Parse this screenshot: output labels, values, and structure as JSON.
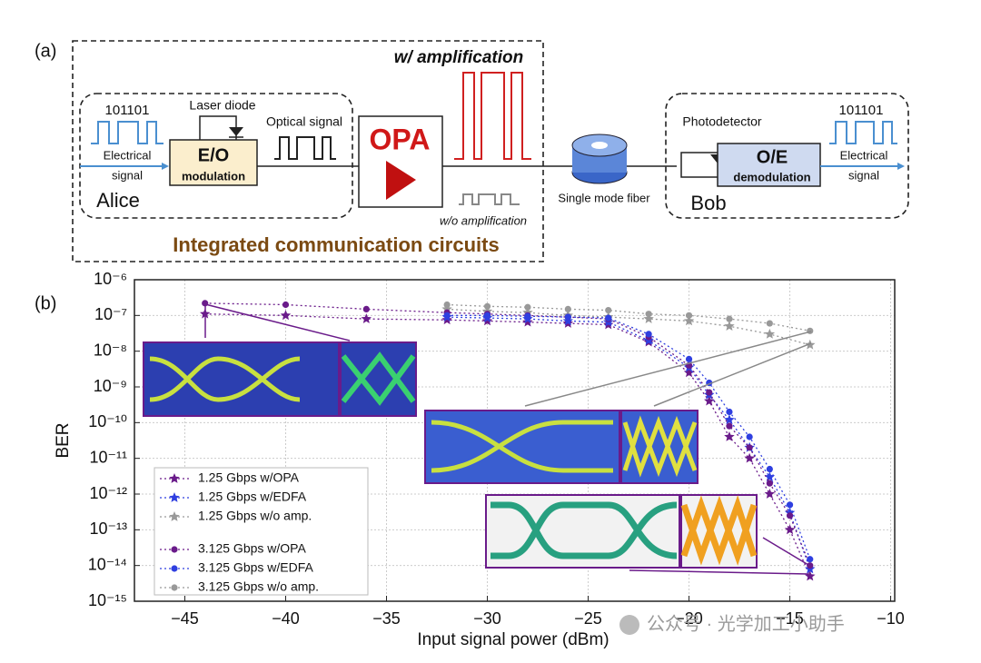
{
  "diagram": {
    "panel_a": "(a)",
    "amp_label": "w/ amplification",
    "alice_bits": "101101",
    "laser": "Laser diode",
    "optical": "Optical signal",
    "opa": "OPA",
    "alice_elec": [
      "Electrical",
      "signal"
    ],
    "eo": "E/O",
    "eo_sub": "modulation",
    "alice": "Alice",
    "no_amp": "w/o amplification",
    "fiber": "Single mode fiber",
    "circuits": "Integrated communication circuits",
    "photodetector": "Photodetector",
    "bob_bits": "101101",
    "oe": "O/E",
    "oe_sub": "demodulation",
    "bob_elec": [
      "Electrical",
      "signal"
    ],
    "bob": "Bob"
  },
  "watermark": "公众号 · 光学加工小助手",
  "chart_data": {
    "type": "line",
    "panel_label": "(b)",
    "xlabel": "Input signal power (dBm)",
    "ylabel": "BER",
    "log_y": true,
    "grid": true,
    "legend": "lower left",
    "xlim": [
      -47.5,
      -9.8
    ],
    "ylim": [
      1e-15,
      1e-06
    ],
    "xticks": [
      {
        "value": -45,
        "label": "−45"
      },
      {
        "value": -40,
        "label": "−40"
      },
      {
        "value": -35,
        "label": "−35"
      },
      {
        "value": -30,
        "label": "−30"
      },
      {
        "value": -25,
        "label": "−25"
      },
      {
        "value": -20,
        "label": "−20"
      },
      {
        "value": -15,
        "label": "−15"
      },
      {
        "value": -10,
        "label": "−10"
      }
    ],
    "yticks": [
      {
        "value": 1e-06,
        "label": "10⁻⁶"
      },
      {
        "value": 1e-07,
        "label": "10⁻⁷"
      },
      {
        "value": 1e-08,
        "label": "10⁻⁸"
      },
      {
        "value": 1e-09,
        "label": "10⁻⁹"
      },
      {
        "value": 1e-10,
        "label": "10⁻¹⁰"
      },
      {
        "value": 1e-11,
        "label": "10⁻¹¹"
      },
      {
        "value": 1e-12,
        "label": "10⁻¹²"
      },
      {
        "value": 1e-13,
        "label": "10⁻¹³"
      },
      {
        "value": 1e-14,
        "label": "10⁻¹⁴"
      },
      {
        "value": 1e-15,
        "label": "10⁻¹⁵"
      }
    ],
    "series": [
      {
        "name": "1.25 Gbps w/OPA",
        "color": "#6a1b8a",
        "marker": "star",
        "x": [
          -44,
          -40,
          -36,
          -32,
          -30,
          -28,
          -26,
          -24,
          -22,
          -20,
          -19,
          -18,
          -17,
          -16,
          -15,
          -14
        ],
        "values": [
          1.1e-07,
          1e-07,
          8e-08,
          7.5e-08,
          7e-08,
          6.5e-08,
          6e-08,
          5.5e-08,
          1.8e-08,
          2.5e-09,
          4e-10,
          4e-11,
          1e-11,
          1e-12,
          1e-13,
          5e-15
        ]
      },
      {
        "name": "1.25 Gbps w/EDFA",
        "color": "#2f3fe0",
        "marker": "star",
        "x": [
          -32,
          -30,
          -28,
          -26,
          -24,
          -22,
          -20,
          -19,
          -18,
          -17,
          -16,
          -15,
          -14
        ],
        "values": [
          9e-08,
          8.5e-08,
          8e-08,
          7e-08,
          6.5e-08,
          2e-08,
          3.5e-09,
          6e-10,
          1.2e-10,
          2e-11,
          3e-12,
          3e-13,
          8e-15
        ]
      },
      {
        "name": "1.25 Gbps w/o amp.",
        "color": "#999999",
        "marker": "star",
        "x": [
          -32,
          -30,
          -28,
          -26,
          -24,
          -22,
          -20,
          -18,
          -16,
          -14
        ],
        "values": [
          1.5e-07,
          1.3e-07,
          1.2e-07,
          1e-07,
          9e-08,
          8e-08,
          7e-08,
          5e-08,
          3e-08,
          1.5e-08
        ]
      },
      {
        "name": "3.125 Gbps w/OPA",
        "color": "#6a1b8a",
        "marker": "circle",
        "x": [
          -44,
          -40,
          -36,
          -32,
          -30,
          -28,
          -26,
          -24,
          -22,
          -20,
          -19,
          -18,
          -17,
          -16,
          -15,
          -14
        ],
        "values": [
          2.2e-07,
          2e-07,
          1.5e-07,
          1.2e-07,
          1.1e-07,
          1e-07,
          9e-08,
          8e-08,
          2.5e-08,
          4e-09,
          7e-10,
          8e-11,
          2e-11,
          2e-12,
          2.5e-13,
          1e-14
        ]
      },
      {
        "name": "3.125 Gbps w/EDFA",
        "color": "#2f3fe0",
        "marker": "circle",
        "x": [
          -32,
          -30,
          -28,
          -26,
          -24,
          -22,
          -20,
          -19,
          -18,
          -17,
          -16,
          -15,
          -14
        ],
        "values": [
          1e-07,
          1e-07,
          9.5e-08,
          9e-08,
          8.5e-08,
          3e-08,
          6e-09,
          1.3e-09,
          2e-10,
          4e-11,
          5e-12,
          5e-13,
          1.5e-14
        ]
      },
      {
        "name": "3.125 Gbps w/o amp.",
        "color": "#999999",
        "marker": "circle",
        "x": [
          -32,
          -30,
          -28,
          -26,
          -24,
          -22,
          -20,
          -18,
          -16,
          -14
        ],
        "values": [
          2e-07,
          1.8e-07,
          1.7e-07,
          1.5e-07,
          1.4e-07,
          1.1e-07,
          1e-07,
          8e-08,
          6e-08,
          3.7e-08
        ]
      }
    ]
  }
}
